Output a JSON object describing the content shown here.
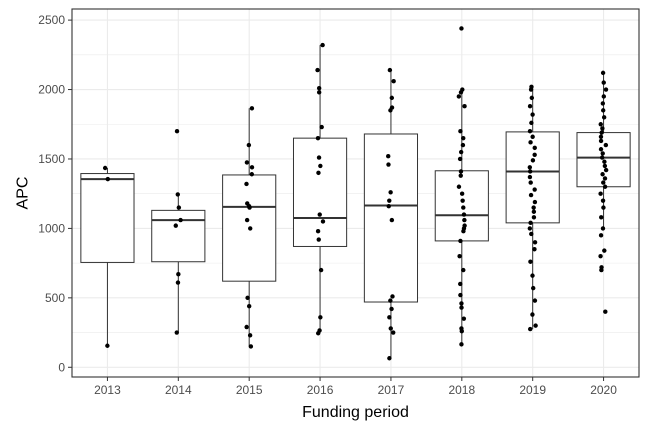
{
  "chart_data": {
    "type": "box",
    "xlabel": "Funding period",
    "ylabel": "APC",
    "ylim": [
      -70,
      2580
    ],
    "yticks": [
      0,
      500,
      1000,
      1500,
      2000,
      2500
    ],
    "grid": true,
    "colors": {
      "box_fill": "#ffffff",
      "line": "#333333",
      "point": "#000000",
      "grid": "#ebebeb"
    },
    "categories": [
      "2013",
      "2014",
      "2015",
      "2016",
      "2017",
      "2018",
      "2019",
      "2020"
    ],
    "boxes": [
      {
        "q1": 755,
        "median": 1355,
        "q3": 1395,
        "whisker_low": 155,
        "whisker_high": 1435
      },
      {
        "q1": 760,
        "median": 1060,
        "q3": 1130,
        "whisker_low": 250,
        "whisker_high": 1245
      },
      {
        "q1": 620,
        "median": 1155,
        "q3": 1385,
        "whisker_low": 150,
        "whisker_high": 1865
      },
      {
        "q1": 870,
        "median": 1075,
        "q3": 1650,
        "whisker_low": 245,
        "whisker_high": 2320
      },
      {
        "q1": 470,
        "median": 1165,
        "q3": 1680,
        "whisker_low": 65,
        "whisker_high": 2140
      },
      {
        "q1": 910,
        "median": 1095,
        "q3": 1415,
        "whisker_low": 165,
        "whisker_high": 1995
      },
      {
        "q1": 1040,
        "median": 1410,
        "q3": 1695,
        "whisker_low": 275,
        "whisker_high": 2020
      },
      {
        "q1": 1300,
        "median": 1510,
        "q3": 1690,
        "whisker_low": 1000,
        "whisker_high": 2120
      }
    ],
    "points": [
      [
        155,
        1355,
        1435
      ],
      [
        250,
        610,
        670,
        1020,
        1060,
        1150,
        1245,
        1700
      ],
      [
        150,
        230,
        290,
        440,
        500,
        1000,
        1060,
        1150,
        1160,
        1180,
        1320,
        1390,
        1440,
        1475,
        1600,
        1865
      ],
      [
        245,
        265,
        360,
        700,
        920,
        980,
        1050,
        1100,
        1400,
        1450,
        1510,
        1650,
        1730,
        1980,
        2010,
        2140,
        2320
      ],
      [
        65,
        250,
        280,
        360,
        420,
        480,
        510,
        1060,
        1160,
        1200,
        1260,
        1460,
        1520,
        1850,
        1870,
        1940,
        2060,
        2140
      ],
      [
        165,
        260,
        280,
        350,
        430,
        460,
        520,
        600,
        700,
        800,
        910,
        980,
        1000,
        1020,
        1060,
        1100,
        1150,
        1200,
        1250,
        1300,
        1380,
        1410,
        1500,
        1550,
        1600,
        1650,
        1700,
        1880,
        1950,
        1980,
        2000,
        2440
      ],
      [
        275,
        300,
        380,
        480,
        570,
        660,
        760,
        850,
        900,
        960,
        1000,
        1040,
        1080,
        1120,
        1150,
        1190,
        1240,
        1280,
        1330,
        1370,
        1410,
        1440,
        1490,
        1530,
        1580,
        1620,
        1660,
        1700,
        1760,
        1820,
        1880,
        1940,
        2000,
        2020
      ],
      [
        400,
        700,
        720,
        800,
        840,
        950,
        1000,
        1080,
        1150,
        1200,
        1250,
        1300,
        1330,
        1360,
        1390,
        1420,
        1450,
        1480,
        1510,
        1540,
        1570,
        1600,
        1630,
        1660,
        1690,
        1720,
        1750,
        1800,
        1850,
        1900,
        1950,
        2000,
        2050,
        2120
      ]
    ]
  }
}
